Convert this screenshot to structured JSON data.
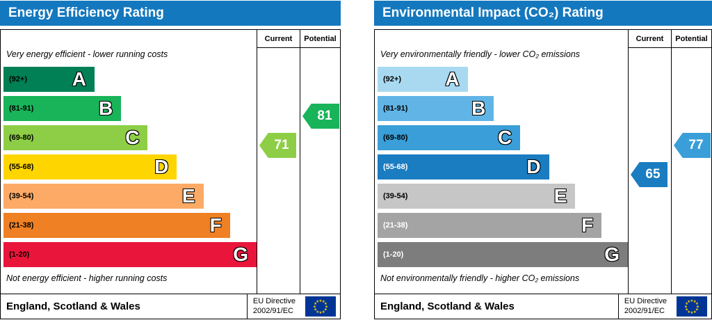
{
  "panels": [
    {
      "name": "energy-efficiency",
      "title": "Energy Efficiency Rating",
      "columns": {
        "current": "Current",
        "potential": "Potential"
      },
      "top_note": "Very energy efficient - lower running costs",
      "bottom_note": "Not energy efficient - higher running costs",
      "bands": [
        {
          "range_label": "(92+)",
          "letter": "A",
          "color": "#008054",
          "label_color": "#000000",
          "width_pct": 36
        },
        {
          "range_label": "(81-91)",
          "letter": "B",
          "color": "#19b459",
          "label_color": "#000000",
          "width_pct": 46.5
        },
        {
          "range_label": "(69-80)",
          "letter": "C",
          "color": "#8dce46",
          "label_color": "#000000",
          "width_pct": 57
        },
        {
          "range_label": "(55-68)",
          "letter": "D",
          "color": "#ffd500",
          "label_color": "#000000",
          "width_pct": 68.5
        },
        {
          "range_label": "(39-54)",
          "letter": "E",
          "color": "#fcaa65",
          "label_color": "#000000",
          "width_pct": 79
        },
        {
          "range_label": "(21-38)",
          "letter": "F",
          "color": "#ef8023",
          "label_color": "#000000",
          "width_pct": 89.5
        },
        {
          "range_label": "(1-20)",
          "letter": "G",
          "color": "#e9153b",
          "label_color": "#000000",
          "width_pct": 100
        }
      ],
      "current": {
        "value": "71",
        "band": "C",
        "color": "#8dce46"
      },
      "potential": {
        "value": "81",
        "band": "B",
        "color": "#19b459"
      },
      "footer": {
        "region": "England, Scotland & Wales",
        "directive_line1": "EU Directive",
        "directive_line2": "2002/91/EC"
      }
    },
    {
      "name": "environmental-impact",
      "title": "Environmental Impact (CO₂) Rating",
      "columns": {
        "current": "Current",
        "potential": "Potential"
      },
      "top_note": "Very environmentally friendly - lower CO₂ emissions",
      "bottom_note": "Not environmentally friendly - higher CO₂ emissions",
      "bands": [
        {
          "range_label": "(92+)",
          "letter": "A",
          "color": "#a8d9f1",
          "label_color": "#000000",
          "width_pct": 36
        },
        {
          "range_label": "(81-91)",
          "letter": "B",
          "color": "#60b5e6",
          "label_color": "#000000",
          "width_pct": 46.5
        },
        {
          "range_label": "(69-80)",
          "letter": "C",
          "color": "#3a9ed8",
          "label_color": "#000000",
          "width_pct": 57
        },
        {
          "range_label": "(55-68)",
          "letter": "D",
          "color": "#1a7cc1",
          "label_color": "#ffffff",
          "width_pct": 68.5
        },
        {
          "range_label": "(39-54)",
          "letter": "E",
          "color": "#c6c6c6",
          "label_color": "#000000",
          "width_pct": 79
        },
        {
          "range_label": "(21-38)",
          "letter": "F",
          "color": "#a4a4a4",
          "label_color": "#ffffff",
          "width_pct": 89.5
        },
        {
          "range_label": "(1-20)",
          "letter": "G",
          "color": "#7d7d7d",
          "label_color": "#ffffff",
          "width_pct": 100
        }
      ],
      "current": {
        "value": "65",
        "band": "D",
        "color": "#1a7cc1"
      },
      "potential": {
        "value": "77",
        "band": "C",
        "color": "#3a9ed8"
      },
      "footer": {
        "region": "England, Scotland & Wales",
        "directive_line1": "EU Directive",
        "directive_line2": "2002/91/EC"
      }
    }
  ],
  "colors": {
    "header_bg": "#1478be",
    "header_text": "#ffffff",
    "flag_bg": "#003595",
    "flag_stars": "#ffcc00"
  },
  "chart_data": [
    {
      "type": "bar",
      "title": "Energy Efficiency Rating",
      "categories": [
        "A (92+)",
        "B (81-91)",
        "C (69-80)",
        "D (55-68)",
        "E (39-54)",
        "F (21-38)",
        "G (1-20)"
      ],
      "values": [
        36,
        46.5,
        57,
        68.5,
        79,
        89.5,
        100
      ],
      "series": [
        {
          "name": "Current",
          "value": 71,
          "band": "C"
        },
        {
          "name": "Potential",
          "value": 81,
          "band": "B"
        }
      ],
      "xlabel": "",
      "ylabel": "",
      "xlim": [
        0,
        100
      ],
      "grid": false,
      "legend_position": "top-right-columns",
      "annotations": [
        "Very energy efficient - lower running costs",
        "Not energy efficient - higher running costs"
      ]
    },
    {
      "type": "bar",
      "title": "Environmental Impact (CO₂) Rating",
      "categories": [
        "A (92+)",
        "B (81-91)",
        "C (69-80)",
        "D (55-68)",
        "E (39-54)",
        "F (21-38)",
        "G (1-20)"
      ],
      "values": [
        36,
        46.5,
        57,
        68.5,
        79,
        89.5,
        100
      ],
      "series": [
        {
          "name": "Current",
          "value": 65,
          "band": "D"
        },
        {
          "name": "Potential",
          "value": 77,
          "band": "C"
        }
      ],
      "xlabel": "",
      "ylabel": "",
      "xlim": [
        0,
        100
      ],
      "grid": false,
      "legend_position": "top-right-columns",
      "annotations": [
        "Very environmentally friendly - lower CO₂ emissions",
        "Not environmentally friendly - higher CO₂ emissions"
      ]
    }
  ]
}
